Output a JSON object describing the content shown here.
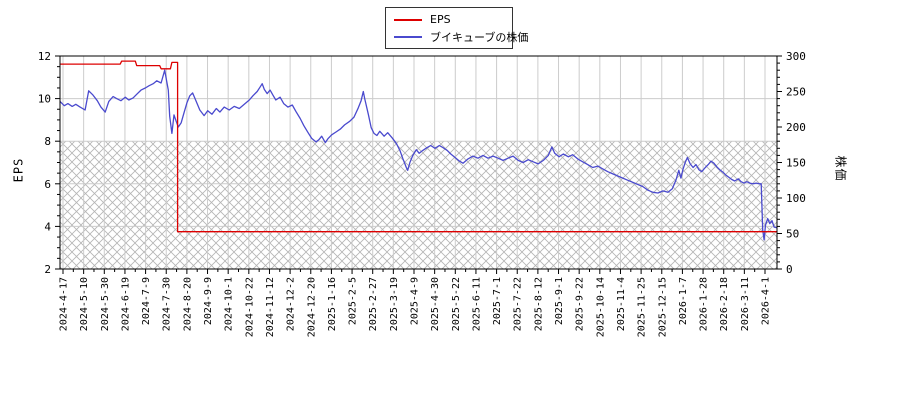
{
  "legend": {
    "items": [
      {
        "label": "EPS",
        "color": "#dd0000"
      },
      {
        "label": "ブイキューブの株価",
        "color": "#4a4ace"
      }
    ]
  },
  "chart_data": {
    "type": "line",
    "title": "",
    "grid": true,
    "legend_position": "top-center",
    "hatch_below_left_value": 8,
    "x_tick_labels": [
      "2024-4-17",
      "2024-5-10",
      "2024-5-30",
      "2024-6-19",
      "2024-7-9",
      "2024-7-30",
      "2024-8-20",
      "2024-9-9",
      "2024-10-1",
      "2024-10-22",
      "2024-11-12",
      "2024-12-2",
      "2024-12-20",
      "2025-1-16",
      "2025-2-5",
      "2025-2-27",
      "2025-3-19",
      "2025-4-9",
      "2025-4-30",
      "2025-5-22",
      "2025-6-11",
      "2025-7-1",
      "2025-7-22",
      "2025-8-12",
      "2025-9-1",
      "2025-9-22",
      "2025-10-14",
      "2025-11-4",
      "2025-11-25",
      "2025-12-15",
      "2026-1-7",
      "2026-1-28",
      "2026-2-18",
      "2026-3-11",
      "2026-4-1"
    ],
    "left_axis": {
      "label": "EPS",
      "min": 2,
      "max": 12,
      "major_ticks": [
        2,
        4,
        6,
        8,
        10,
        12
      ],
      "minor_step": 0.5
    },
    "right_axis": {
      "label": "株価",
      "min": 0,
      "max": 300,
      "major_ticks": [
        0,
        50,
        100,
        150,
        200,
        250,
        300
      ],
      "minor_step": 10
    },
    "series": [
      {
        "name": "EPS",
        "axis": "left",
        "color": "#dd0000",
        "points": [
          [
            0.0,
            11.62
          ],
          [
            0.084,
            11.62
          ],
          [
            0.086,
            11.76
          ],
          [
            0.105,
            11.76
          ],
          [
            0.107,
            11.55
          ],
          [
            0.139,
            11.55
          ],
          [
            0.141,
            11.4
          ],
          [
            0.154,
            11.4
          ],
          [
            0.156,
            11.7
          ],
          [
            0.164,
            11.7
          ],
          [
            0.164,
            3.75
          ],
          [
            1.0,
            3.75
          ]
        ]
      },
      {
        "name": "ブイキューブの株価",
        "axis": "right",
        "color": "#4a4ace",
        "points": [
          [
            0.0,
            236
          ],
          [
            0.006,
            230
          ],
          [
            0.011,
            233
          ],
          [
            0.017,
            229
          ],
          [
            0.022,
            232
          ],
          [
            0.028,
            228
          ],
          [
            0.035,
            224
          ],
          [
            0.04,
            251
          ],
          [
            0.046,
            245
          ],
          [
            0.052,
            237
          ],
          [
            0.057,
            228
          ],
          [
            0.063,
            221
          ],
          [
            0.068,
            236
          ],
          [
            0.074,
            243
          ],
          [
            0.079,
            240
          ],
          [
            0.085,
            237
          ],
          [
            0.091,
            242
          ],
          [
            0.096,
            238
          ],
          [
            0.102,
            241
          ],
          [
            0.107,
            246
          ],
          [
            0.113,
            252
          ],
          [
            0.119,
            255
          ],
          [
            0.124,
            258
          ],
          [
            0.13,
            261
          ],
          [
            0.135,
            265
          ],
          [
            0.141,
            262
          ],
          [
            0.146,
            280
          ],
          [
            0.151,
            252
          ],
          [
            0.153,
            215
          ],
          [
            0.156,
            191
          ],
          [
            0.159,
            217
          ],
          [
            0.162,
            208
          ],
          [
            0.165,
            200
          ],
          [
            0.169,
            206
          ],
          [
            0.173,
            220
          ],
          [
            0.177,
            234
          ],
          [
            0.181,
            244
          ],
          [
            0.185,
            248
          ],
          [
            0.19,
            236
          ],
          [
            0.195,
            224
          ],
          [
            0.201,
            216
          ],
          [
            0.206,
            223
          ],
          [
            0.212,
            218
          ],
          [
            0.218,
            226
          ],
          [
            0.223,
            221
          ],
          [
            0.229,
            228
          ],
          [
            0.236,
            224
          ],
          [
            0.243,
            229
          ],
          [
            0.25,
            226
          ],
          [
            0.257,
            232
          ],
          [
            0.264,
            238
          ],
          [
            0.269,
            244
          ],
          [
            0.275,
            250
          ],
          [
            0.279,
            256
          ],
          [
            0.282,
            261
          ],
          [
            0.285,
            253
          ],
          [
            0.289,
            247
          ],
          [
            0.293,
            252
          ],
          [
            0.297,
            245
          ],
          [
            0.301,
            238
          ],
          [
            0.307,
            242
          ],
          [
            0.312,
            233
          ],
          [
            0.318,
            228
          ],
          [
            0.324,
            231
          ],
          [
            0.329,
            222
          ],
          [
            0.335,
            212
          ],
          [
            0.34,
            202
          ],
          [
            0.346,
            192
          ],
          [
            0.351,
            184
          ],
          [
            0.357,
            179
          ],
          [
            0.361,
            182
          ],
          [
            0.365,
            187
          ],
          [
            0.37,
            178
          ],
          [
            0.374,
            184
          ],
          [
            0.379,
            189
          ],
          [
            0.385,
            193
          ],
          [
            0.391,
            197
          ],
          [
            0.397,
            203
          ],
          [
            0.404,
            208
          ],
          [
            0.41,
            214
          ],
          [
            0.416,
            227
          ],
          [
            0.42,
            237
          ],
          [
            0.423,
            250
          ],
          [
            0.425,
            240
          ],
          [
            0.43,
            218
          ],
          [
            0.434,
            199
          ],
          [
            0.438,
            191
          ],
          [
            0.442,
            188
          ],
          [
            0.446,
            194
          ],
          [
            0.452,
            187
          ],
          [
            0.457,
            192
          ],
          [
            0.463,
            185
          ],
          [
            0.469,
            177
          ],
          [
            0.474,
            167
          ],
          [
            0.478,
            156
          ],
          [
            0.483,
            143
          ],
          [
            0.485,
            139
          ],
          [
            0.488,
            150
          ],
          [
            0.492,
            160
          ],
          [
            0.497,
            168
          ],
          [
            0.501,
            163
          ],
          [
            0.506,
            167
          ],
          [
            0.512,
            171
          ],
          [
            0.517,
            174
          ],
          [
            0.523,
            170
          ],
          [
            0.529,
            174
          ],
          [
            0.534,
            171
          ],
          [
            0.54,
            167
          ],
          [
            0.545,
            162
          ],
          [
            0.551,
            157
          ],
          [
            0.557,
            152
          ],
          [
            0.562,
            149
          ],
          [
            0.569,
            155
          ],
          [
            0.576,
            159
          ],
          [
            0.583,
            156
          ],
          [
            0.59,
            160
          ],
          [
            0.597,
            156
          ],
          [
            0.604,
            159
          ],
          [
            0.611,
            156
          ],
          [
            0.618,
            153
          ],
          [
            0.625,
            156
          ],
          [
            0.632,
            159
          ],
          [
            0.639,
            153
          ],
          [
            0.646,
            150
          ],
          [
            0.653,
            154
          ],
          [
            0.66,
            151
          ],
          [
            0.667,
            148
          ],
          [
            0.674,
            153
          ],
          [
            0.681,
            160
          ],
          [
            0.686,
            172
          ],
          [
            0.69,
            163
          ],
          [
            0.696,
            158
          ],
          [
            0.702,
            162
          ],
          [
            0.709,
            158
          ],
          [
            0.715,
            161
          ],
          [
            0.722,
            155
          ],
          [
            0.729,
            151
          ],
          [
            0.736,
            147
          ],
          [
            0.743,
            143
          ],
          [
            0.75,
            145
          ],
          [
            0.757,
            141
          ],
          [
            0.764,
            137
          ],
          [
            0.771,
            134
          ],
          [
            0.778,
            131
          ],
          [
            0.785,
            128
          ],
          [
            0.792,
            125
          ],
          [
            0.799,
            122
          ],
          [
            0.806,
            119
          ],
          [
            0.813,
            116
          ],
          [
            0.82,
            111
          ],
          [
            0.827,
            108
          ],
          [
            0.834,
            107
          ],
          [
            0.841,
            110
          ],
          [
            0.848,
            108
          ],
          [
            0.854,
            113
          ],
          [
            0.859,
            125
          ],
          [
            0.863,
            139
          ],
          [
            0.866,
            128
          ],
          [
            0.869,
            141
          ],
          [
            0.872,
            150
          ],
          [
            0.875,
            157
          ],
          [
            0.879,
            148
          ],
          [
            0.883,
            143
          ],
          [
            0.887,
            147
          ],
          [
            0.891,
            140
          ],
          [
            0.895,
            137
          ],
          [
            0.9,
            143
          ],
          [
            0.904,
            147
          ],
          [
            0.908,
            152
          ],
          [
            0.912,
            149
          ],
          [
            0.916,
            144
          ],
          [
            0.92,
            140
          ],
          [
            0.925,
            136
          ],
          [
            0.929,
            132
          ],
          [
            0.933,
            129
          ],
          [
            0.937,
            126
          ],
          [
            0.941,
            124
          ],
          [
            0.946,
            127
          ],
          [
            0.95,
            123
          ],
          [
            0.954,
            121
          ],
          [
            0.958,
            123
          ],
          [
            0.962,
            121
          ],
          [
            0.966,
            120
          ],
          [
            0.971,
            121
          ],
          [
            0.975,
            120
          ],
          [
            0.978,
            120
          ],
          [
            0.98,
            55
          ],
          [
            0.982,
            41
          ],
          [
            0.984,
            62
          ],
          [
            0.987,
            71
          ],
          [
            0.99,
            64
          ],
          [
            0.993,
            68
          ],
          [
            0.996,
            59
          ],
          [
            1.0,
            58
          ]
        ]
      }
    ]
  },
  "style": {
    "grid_color": "#cccccc",
    "hatch_color": "#b4b4b4",
    "border_color": "#000000",
    "tick_label_color": "#000000"
  }
}
